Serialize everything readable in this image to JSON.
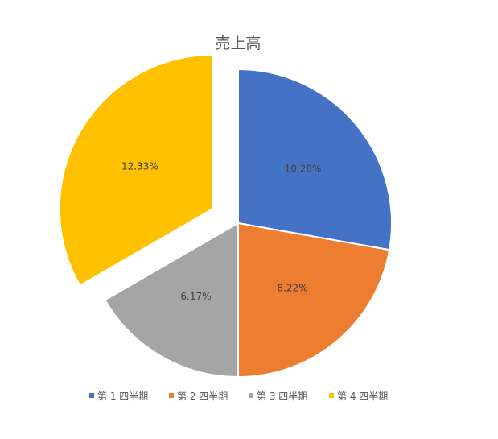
{
  "chart_data": {
    "type": "pie",
    "title": "売上高",
    "categories": [
      "第 1 四半期",
      "第 2 四半期",
      "第 3 四半期",
      "第 4 四半期"
    ],
    "values": [
      10.28,
      8.22,
      6.17,
      12.33
    ],
    "labels": [
      "10.28%",
      "8.22%",
      "6.17%",
      "12.33%"
    ],
    "colors": [
      "#4472C4",
      "#ED7D31",
      "#A5A5A5",
      "#FFC000"
    ],
    "exploded": [
      false,
      false,
      false,
      true
    ],
    "legend_position": "bottom"
  }
}
